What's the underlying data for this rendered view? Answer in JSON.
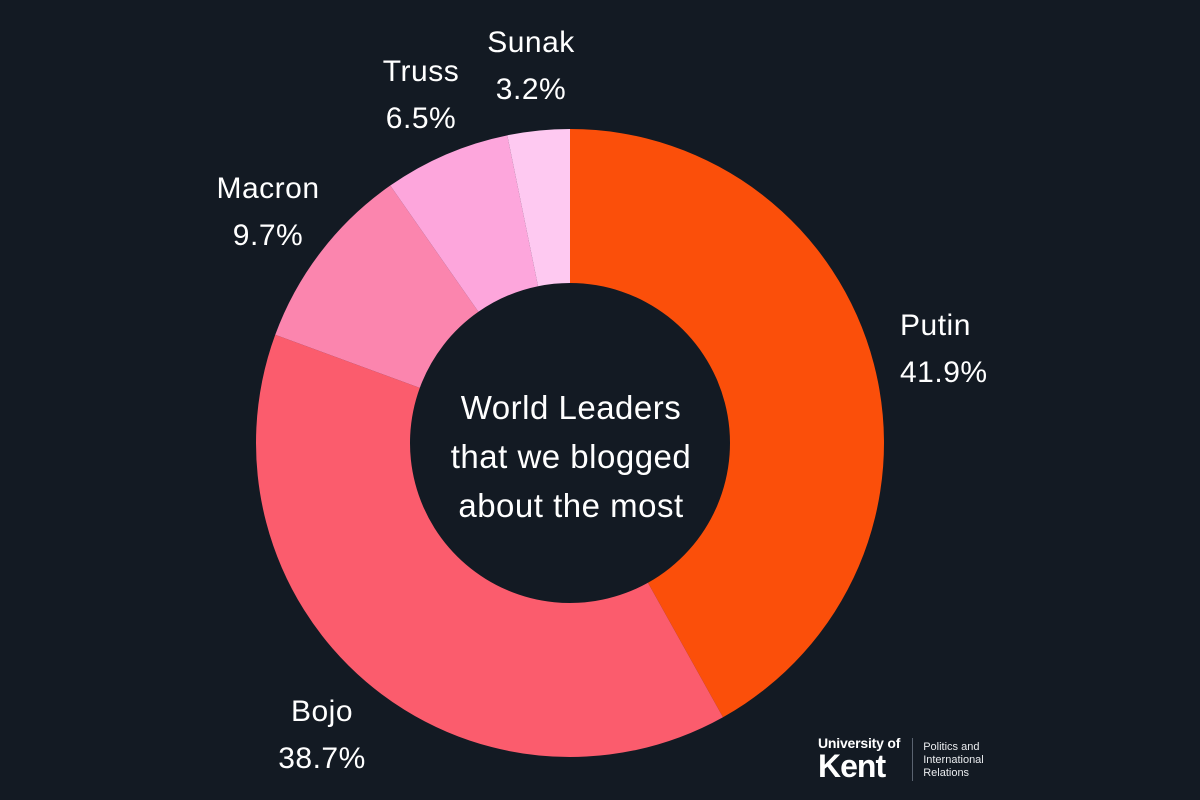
{
  "background_color": "#131a23",
  "text_color": "#ffffff",
  "center_title_lines": [
    "World Leaders",
    "that we blogged",
    "about the most"
  ],
  "chart_data": {
    "type": "pie",
    "donut": true,
    "title": "World Leaders that we blogged about the most",
    "start_angle_deg": 0,
    "direction": "clockwise",
    "unit": "%",
    "categories": [
      "Putin",
      "Bojo",
      "Macron",
      "Truss",
      "Sunak"
    ],
    "values": [
      41.9,
      38.7,
      9.7,
      6.5,
      3.2
    ],
    "slices": [
      {
        "name": "Putin",
        "value": 41.9,
        "pct_label": "41.9%",
        "color": "#fb4f0a"
      },
      {
        "name": "Bojo",
        "value": 38.7,
        "pct_label": "38.7%",
        "color": "#fb5c6d"
      },
      {
        "name": "Macron",
        "value": 9.7,
        "pct_label": "9.7%",
        "color": "#fb85ae"
      },
      {
        "name": "Truss",
        "value": 6.5,
        "pct_label": "6.5%",
        "color": "#fda6dc"
      },
      {
        "name": "Sunak",
        "value": 3.2,
        "pct_label": "3.2%",
        "color": "#fec9f1"
      }
    ],
    "legend": "labels-outside",
    "center_text": "World Leaders that we blogged about the most"
  },
  "logo": {
    "university_of": "University of",
    "kent": "Kent",
    "department_lines": [
      "Politics and",
      "International",
      "Relations"
    ]
  }
}
